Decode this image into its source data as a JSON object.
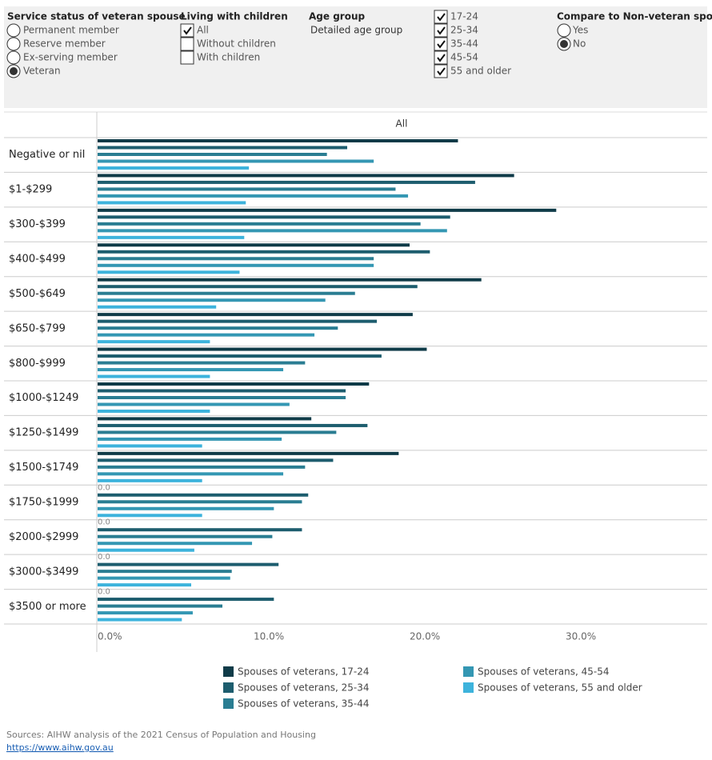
{
  "filters": {
    "service_status": {
      "title": "Service status of veteran spouse",
      "options": [
        "Permanent member",
        "Reserve member",
        "Ex-serving member",
        "Veteran"
      ],
      "selected": 3
    },
    "living_with_children": {
      "title": "Living with children",
      "options": [
        "All",
        "Without children",
        "With children"
      ],
      "checked": [
        true,
        false,
        false
      ]
    },
    "age_group": {
      "title": "Age group",
      "value": "Detailed age group"
    },
    "age_ranges": {
      "options": [
        "17-24",
        "25-34",
        "35-44",
        "45-54",
        "55 and older"
      ],
      "checked": [
        true,
        true,
        true,
        true,
        true
      ]
    },
    "compare": {
      "title": "Compare to Non-veteran spouse",
      "options": [
        "Yes",
        "No"
      ],
      "selected": 1
    }
  },
  "chart_data": {
    "type": "hbar",
    "column_header": "All",
    "categories": [
      "Negative or nil",
      "$1-$299",
      "$300-$399",
      "$400-$499",
      "$500-$649",
      "$650-$799",
      "$800-$999",
      "$1000-$1249",
      "$1250-$1499",
      "$1500-$1749",
      "$1750-$1999",
      "$2000-$2999",
      "$3000-$3499",
      "$3500 or more"
    ],
    "series": [
      {
        "name": "Spouses of veterans, 17-24",
        "color": "#0f3b48",
        "values": [
          23.1,
          26.7,
          29.4,
          20.0,
          24.6,
          20.2,
          21.1,
          17.4,
          13.7,
          19.3,
          0,
          0,
          0,
          0
        ],
        "value_labels": [
          null,
          null,
          null,
          null,
          null,
          null,
          null,
          null,
          null,
          null,
          "0.0",
          "0.0",
          "0.0",
          "0.0"
        ]
      },
      {
        "name": "Spouses of veterans, 25-34",
        "color": "#1d5d6e",
        "values": [
          16.0,
          24.2,
          22.6,
          21.3,
          20.5,
          17.9,
          18.2,
          15.9,
          17.3,
          15.1,
          13.5,
          13.1,
          11.6,
          11.3
        ]
      },
      {
        "name": "Spouses of veterans, 35-44",
        "color": "#2a7d92",
        "values": [
          14.7,
          19.1,
          20.7,
          17.7,
          16.5,
          15.4,
          13.3,
          15.9,
          15.3,
          13.3,
          13.1,
          11.2,
          8.6,
          8.0
        ]
      },
      {
        "name": "Spouses of veterans, 45-54",
        "color": "#3497b3",
        "values": [
          17.7,
          19.9,
          22.4,
          17.7,
          14.6,
          13.9,
          11.9,
          12.3,
          11.8,
          11.9,
          11.3,
          9.9,
          8.5,
          6.1
        ]
      },
      {
        "name": "Spouses of veterans, 55 and older",
        "color": "#3db3dc",
        "values": [
          9.7,
          9.5,
          9.4,
          9.1,
          7.6,
          7.2,
          7.2,
          7.2,
          6.7,
          6.7,
          6.7,
          6.2,
          6.0,
          5.4
        ]
      }
    ],
    "xlim": [
      0,
      39
    ],
    "xticks": [
      {
        "value": 0,
        "label": "0.0%"
      },
      {
        "value": 10,
        "label": "10.0%"
      },
      {
        "value": 20,
        "label": "20.0%"
      },
      {
        "value": 30,
        "label": "30.0%"
      }
    ]
  },
  "footer": {
    "source": "Sources: AIHW analysis of the 2021 Census of Population and Housing",
    "link": "https://www.aihw.gov.au"
  }
}
